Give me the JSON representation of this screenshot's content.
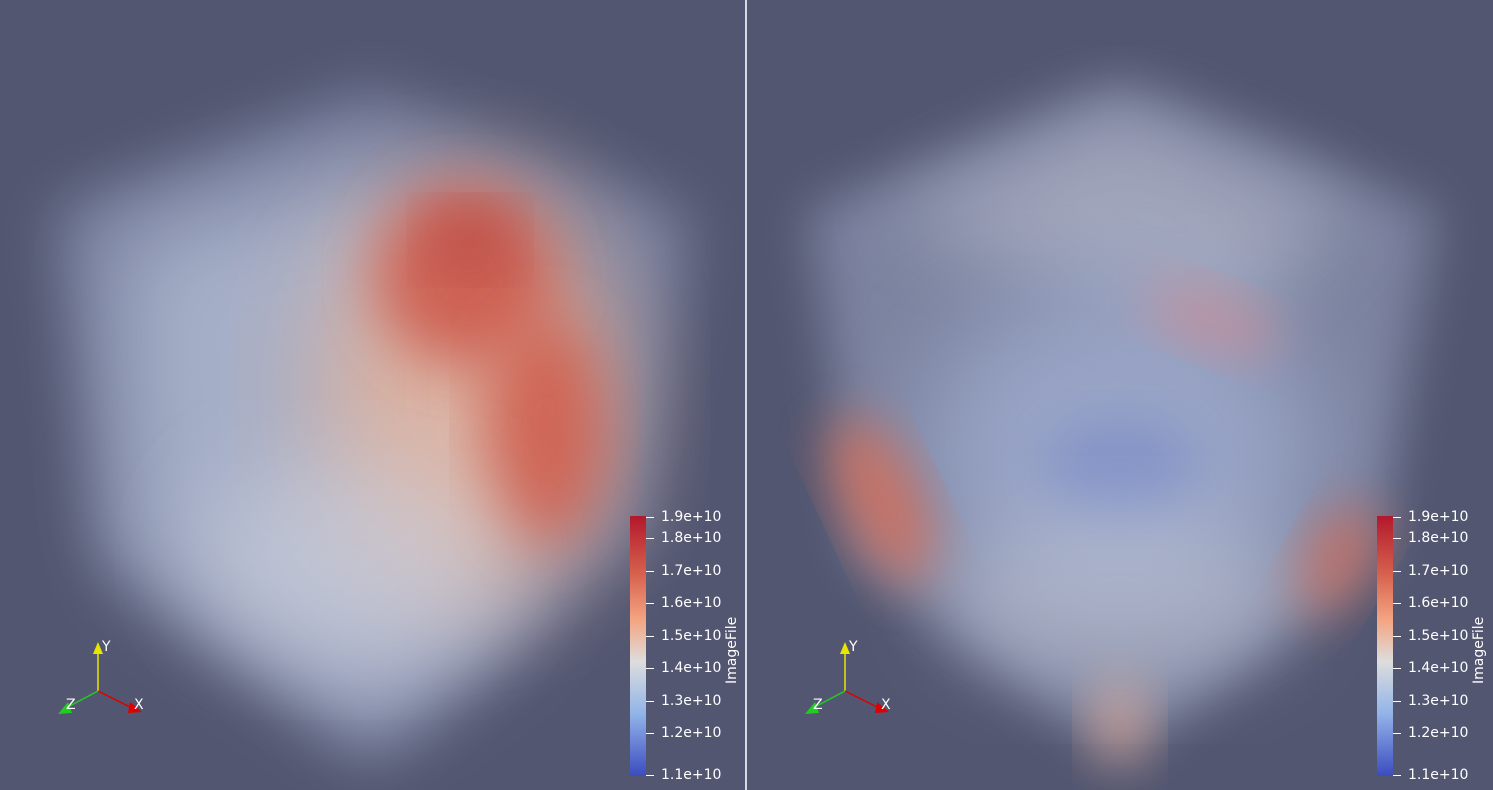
{
  "colors": {
    "background": "#525670",
    "divider": "#d8dae6",
    "colormap_top": "#b2182b",
    "colormap_mid": "#dddddd",
    "colormap_bottom": "#3b4cc0",
    "axis_x": "#dd0000",
    "axis_y": "#e6e600",
    "axis_z": "#22cc22"
  },
  "views": [
    {
      "colorbar": {
        "title": "ImageFile",
        "ticks": [
          "1.9e+10",
          "1.8e+10",
          "1.7e+10",
          "1.6e+10",
          "1.5e+10",
          "1.4e+10",
          "1.3e+10",
          "1.2e+10",
          "1.1e+10"
        ]
      },
      "axes": {
        "x": "X",
        "y": "Y",
        "z": "Z"
      }
    },
    {
      "colorbar": {
        "title": "ImageFile",
        "ticks": [
          "1.9e+10",
          "1.8e+10",
          "1.7e+10",
          "1.6e+10",
          "1.5e+10",
          "1.4e+10",
          "1.3e+10",
          "1.2e+10",
          "1.1e+10"
        ]
      },
      "axes": {
        "x": "X",
        "y": "Y",
        "z": "Z"
      }
    }
  ]
}
